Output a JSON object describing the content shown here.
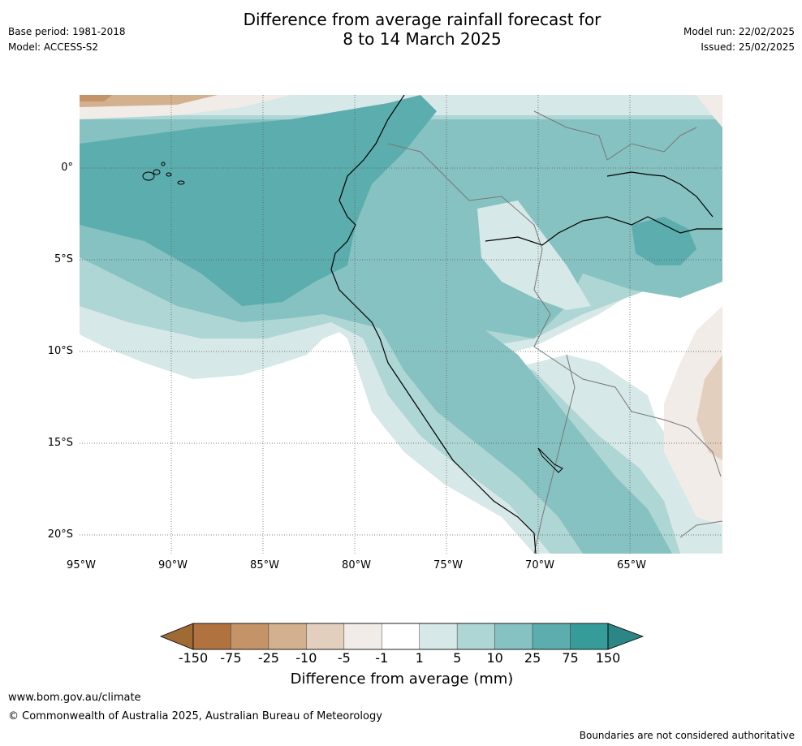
{
  "header": {
    "title_line1": "Difference from average rainfall forecast for",
    "title_line2": "8 to 14 March 2025",
    "base_period": "Base period: 1981-2018",
    "model": "Model: ACCESS-S2",
    "model_run": "Model run: 22/02/2025",
    "issued": "Issued: 25/02/2025"
  },
  "map": {
    "lat_labels": [
      "0°",
      "5°S",
      "10°S",
      "15°S",
      "20°S"
    ],
    "lon_labels": [
      "95°W",
      "90°W",
      "85°W",
      "80°W",
      "75°W",
      "70°W",
      "65°W"
    ],
    "lat_range": [
      -21,
      4
    ],
    "lon_range": [
      -95,
      -60
    ],
    "grid": true
  },
  "colorbar": {
    "labels": [
      "-150",
      "-75",
      "-25",
      "-10",
      "-5",
      "-1",
      "1",
      "5",
      "10",
      "25",
      "75",
      "150"
    ],
    "colors": [
      "#a06a35",
      "#b07340",
      "#c49468",
      "#d3b08e",
      "#e3cfbd",
      "#f1ece7",
      "#ffffff",
      "#d6e8e7",
      "#aed6d5",
      "#86c2c1",
      "#5cadad",
      "#369c9a",
      "#2b8785"
    ],
    "title": "Difference from average (mm)"
  },
  "footer": {
    "website": "www.bom.gov.au/climate",
    "copyright": "© Commonwealth of Australia 2025, Australian Bureau of Meteorology",
    "disclaimer": "Boundaries are not considered authoritative"
  }
}
